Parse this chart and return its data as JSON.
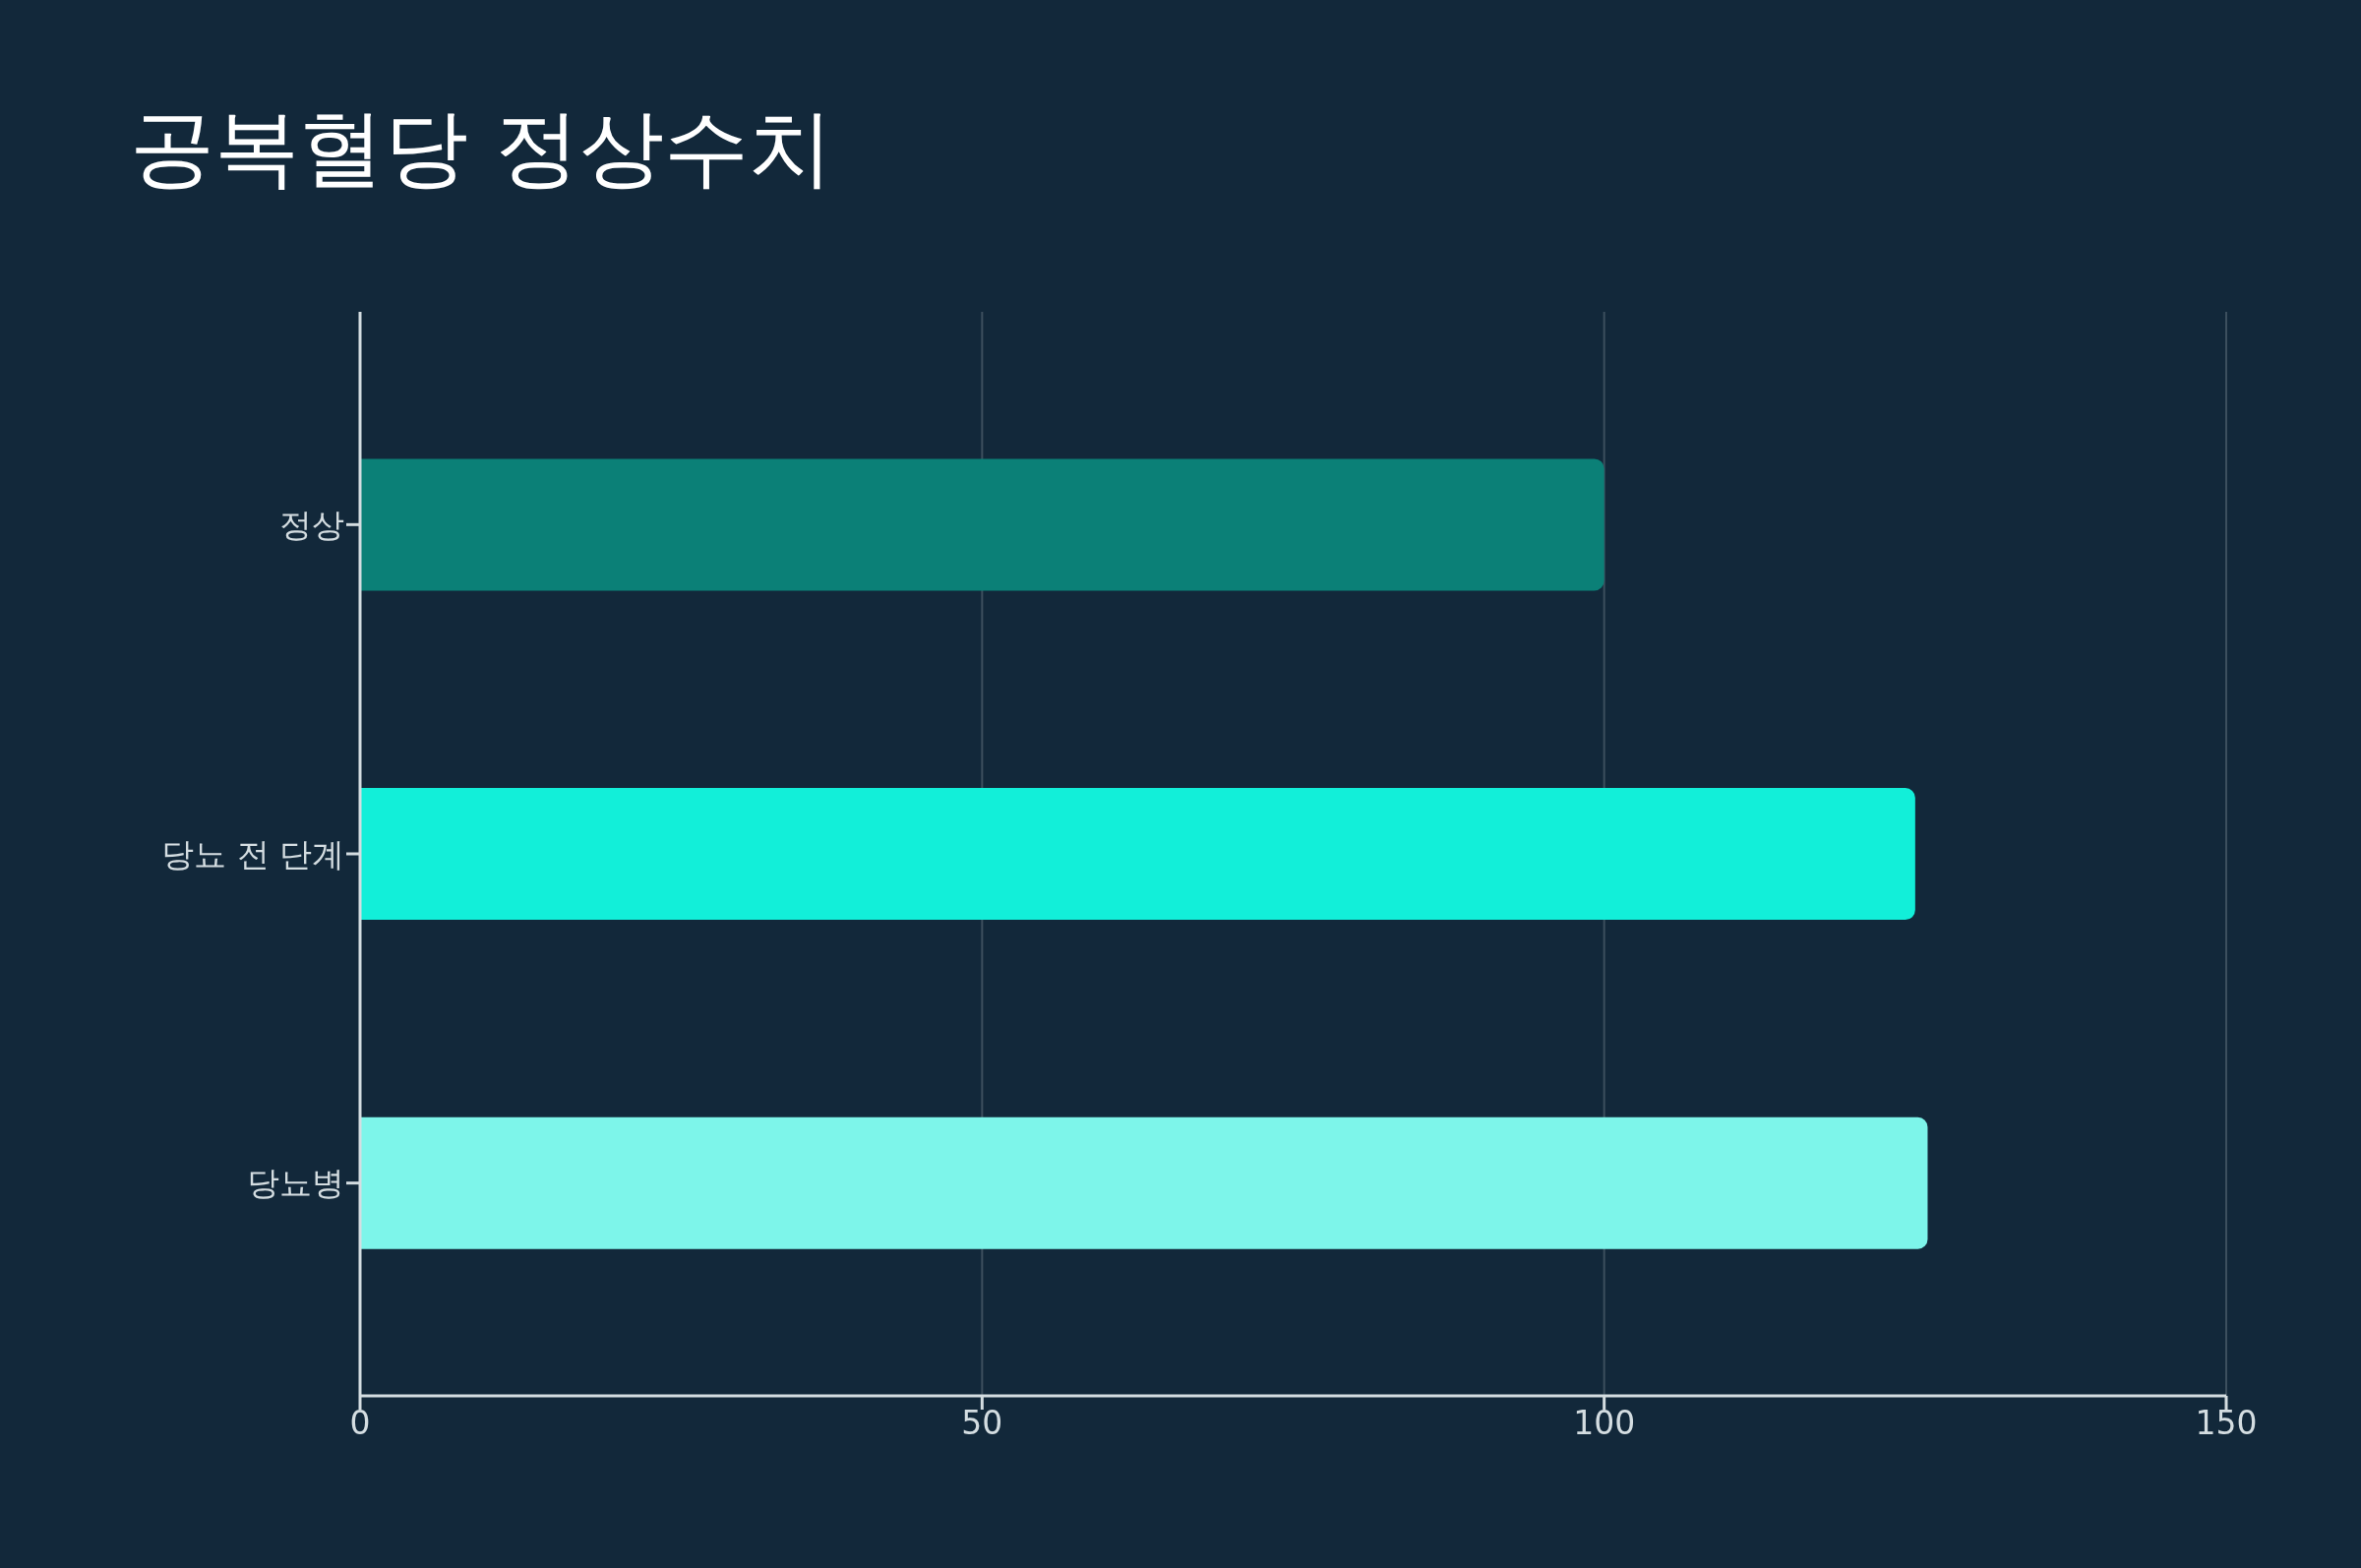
{
  "chart_data": {
    "type": "bar",
    "orientation": "horizontal",
    "title": "공복혈당 정상수치",
    "categories": [
      "정상",
      "당뇨 전 단계",
      "당뇨병"
    ],
    "values": [
      100,
      125,
      126
    ],
    "colors": [
      "#0b8077",
      "#12efd9",
      "#7df5ea"
    ],
    "xlim": [
      0,
      150
    ],
    "xticks": [
      0,
      50,
      100,
      150
    ],
    "grid": "x"
  }
}
